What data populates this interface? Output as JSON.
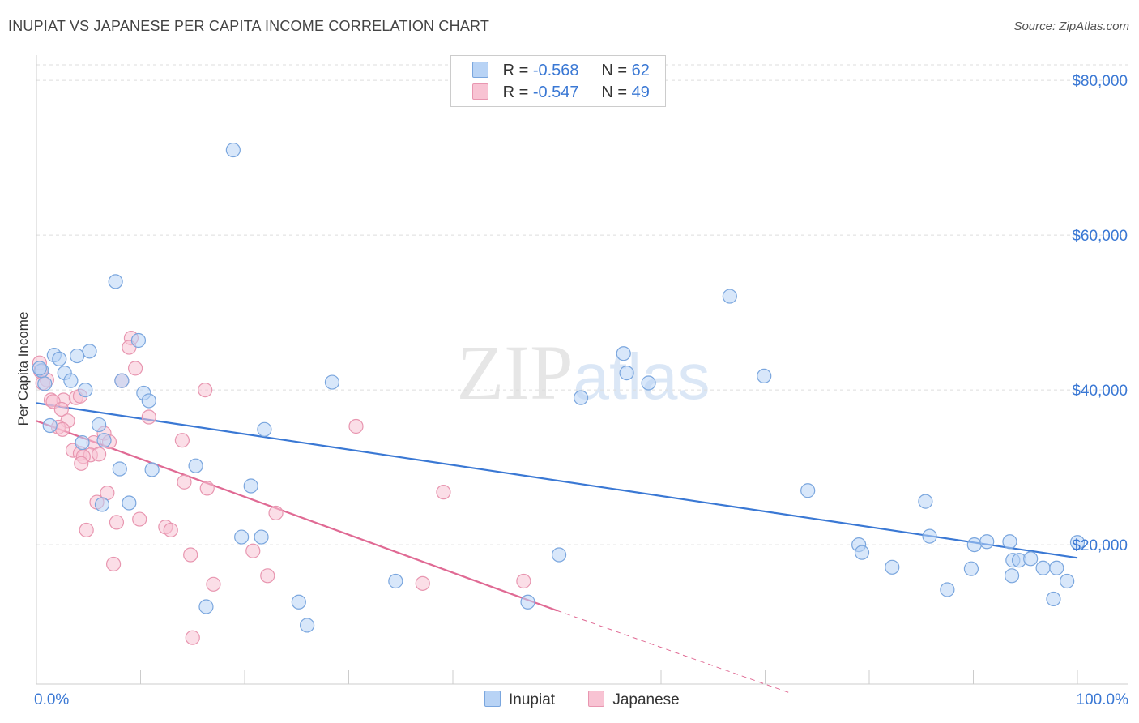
{
  "title": "INUPIAT VS JAPANESE PER CAPITA INCOME CORRELATION CHART",
  "source": "Source: ZipAtlas.com",
  "watermark": "ZIPatlas",
  "legend": {
    "rows": [
      {
        "r_label": "R =",
        "r_value": "-0.568",
        "n_label": "N =",
        "n_value": "62"
      },
      {
        "r_label": "R =",
        "r_value": "-0.547",
        "n_label": "N =",
        "n_value": "49"
      }
    ]
  },
  "bottom_legend": [
    "Inupiat",
    "Japanese"
  ],
  "colors": {
    "inupiat_fill": "#b8d3f5",
    "inupiat_stroke": "#7aa6de",
    "inupiat_line": "#3a78d4",
    "japanese_fill": "#f8c3d3",
    "japanese_stroke": "#e896b0",
    "japanese_line": "#e06a94",
    "axis_label": "#3a78d4"
  },
  "chart_data": {
    "type": "scatter",
    "title": "INUPIAT VS JAPANESE PER CAPITA INCOME CORRELATION CHART",
    "xlabel": "",
    "ylabel": "Per Capita Income",
    "xlim": [
      0,
      100
    ],
    "ylim": [
      2000,
      82000
    ],
    "x_tick_labels": [
      "0.0%",
      "100.0%"
    ],
    "y_ticks": [
      20000,
      40000,
      60000,
      80000
    ],
    "y_tick_labels": [
      "$20,000",
      "$40,000",
      "$60,000",
      "$80,000"
    ],
    "series": [
      {
        "name": "Inupiat",
        "r": -0.568,
        "n": 62,
        "trend": {
          "x": [
            0,
            100
          ],
          "y": [
            38300,
            18300
          ],
          "dashed_from": null
        },
        "points": [
          [
            18.9,
            71000
          ],
          [
            7.6,
            54000
          ],
          [
            66.6,
            52100
          ],
          [
            9.8,
            46400
          ],
          [
            5.1,
            45000
          ],
          [
            1.7,
            44500
          ],
          [
            2.2,
            44000
          ],
          [
            3.9,
            44400
          ],
          [
            56.4,
            44700
          ],
          [
            0.5,
            42500
          ],
          [
            2.7,
            42200
          ],
          [
            56.7,
            42200
          ],
          [
            69.9,
            41800
          ],
          [
            3.3,
            41200
          ],
          [
            8.2,
            41200
          ],
          [
            28.4,
            41000
          ],
          [
            0.8,
            40800
          ],
          [
            4.7,
            40000
          ],
          [
            10.3,
            39600
          ],
          [
            52.3,
            39000
          ],
          [
            58.8,
            40900
          ],
          [
            10.8,
            38600
          ],
          [
            1.3,
            35400
          ],
          [
            6.0,
            35500
          ],
          [
            21.9,
            34900
          ],
          [
            4.4,
            33200
          ],
          [
            6.5,
            33500
          ],
          [
            15.3,
            30200
          ],
          [
            8.0,
            29800
          ],
          [
            11.1,
            29700
          ],
          [
            20.6,
            27600
          ],
          [
            74.1,
            27000
          ],
          [
            6.3,
            25200
          ],
          [
            8.9,
            25400
          ],
          [
            85.4,
            25600
          ],
          [
            19.7,
            21000
          ],
          [
            21.6,
            21000
          ],
          [
            85.8,
            21100
          ],
          [
            79.0,
            20000
          ],
          [
            90.1,
            20000
          ],
          [
            91.3,
            20400
          ],
          [
            93.5,
            20400
          ],
          [
            100.0,
            20300
          ],
          [
            79.3,
            19000
          ],
          [
            50.2,
            18700
          ],
          [
            93.8,
            18000
          ],
          [
            94.4,
            18000
          ],
          [
            95.5,
            18200
          ],
          [
            96.7,
            17000
          ],
          [
            98.0,
            17000
          ],
          [
            82.2,
            17100
          ],
          [
            89.8,
            16900
          ],
          [
            93.7,
            16000
          ],
          [
            34.5,
            15300
          ],
          [
            99.0,
            15300
          ],
          [
            87.5,
            14200
          ],
          [
            97.7,
            13000
          ],
          [
            25.2,
            12600
          ],
          [
            47.2,
            12600
          ],
          [
            16.3,
            12000
          ],
          [
            26.0,
            9600
          ],
          [
            0.3,
            42800
          ]
        ]
      },
      {
        "name": "Japanese",
        "r": -0.547,
        "n": 49,
        "trend": {
          "x": [
            0,
            50
          ],
          "y": [
            36000,
            11500
          ],
          "dashed_to": [
            72.5,
            800
          ]
        },
        "points": [
          [
            0.3,
            43500
          ],
          [
            0.4,
            42400
          ],
          [
            1.0,
            41300
          ],
          [
            0.6,
            40900
          ],
          [
            2.6,
            38700
          ],
          [
            1.4,
            38700
          ],
          [
            1.6,
            38500
          ],
          [
            3.8,
            39000
          ],
          [
            4.2,
            39200
          ],
          [
            9.1,
            46700
          ],
          [
            8.9,
            45500
          ],
          [
            9.5,
            42800
          ],
          [
            8.2,
            41200
          ],
          [
            16.2,
            40000
          ],
          [
            10.8,
            36500
          ],
          [
            2.4,
            37500
          ],
          [
            3.0,
            36000
          ],
          [
            2.1,
            35200
          ],
          [
            2.5,
            34900
          ],
          [
            6.5,
            34400
          ],
          [
            30.7,
            35300
          ],
          [
            14.0,
            33500
          ],
          [
            7.0,
            33300
          ],
          [
            5.5,
            33200
          ],
          [
            3.5,
            32200
          ],
          [
            4.2,
            31800
          ],
          [
            5.2,
            31600
          ],
          [
            4.5,
            31400
          ],
          [
            6.0,
            31700
          ],
          [
            4.3,
            30500
          ],
          [
            14.2,
            28100
          ],
          [
            16.4,
            27300
          ],
          [
            6.8,
            26700
          ],
          [
            39.1,
            26800
          ],
          [
            5.8,
            25500
          ],
          [
            23.0,
            24100
          ],
          [
            7.7,
            22900
          ],
          [
            9.9,
            23300
          ],
          [
            12.4,
            22300
          ],
          [
            12.9,
            21900
          ],
          [
            4.8,
            21900
          ],
          [
            20.8,
            19200
          ],
          [
            14.8,
            18700
          ],
          [
            7.4,
            17500
          ],
          [
            22.2,
            16000
          ],
          [
            46.8,
            15300
          ],
          [
            17.0,
            14900
          ],
          [
            37.1,
            15000
          ],
          [
            15.0,
            8000
          ]
        ]
      }
    ]
  }
}
